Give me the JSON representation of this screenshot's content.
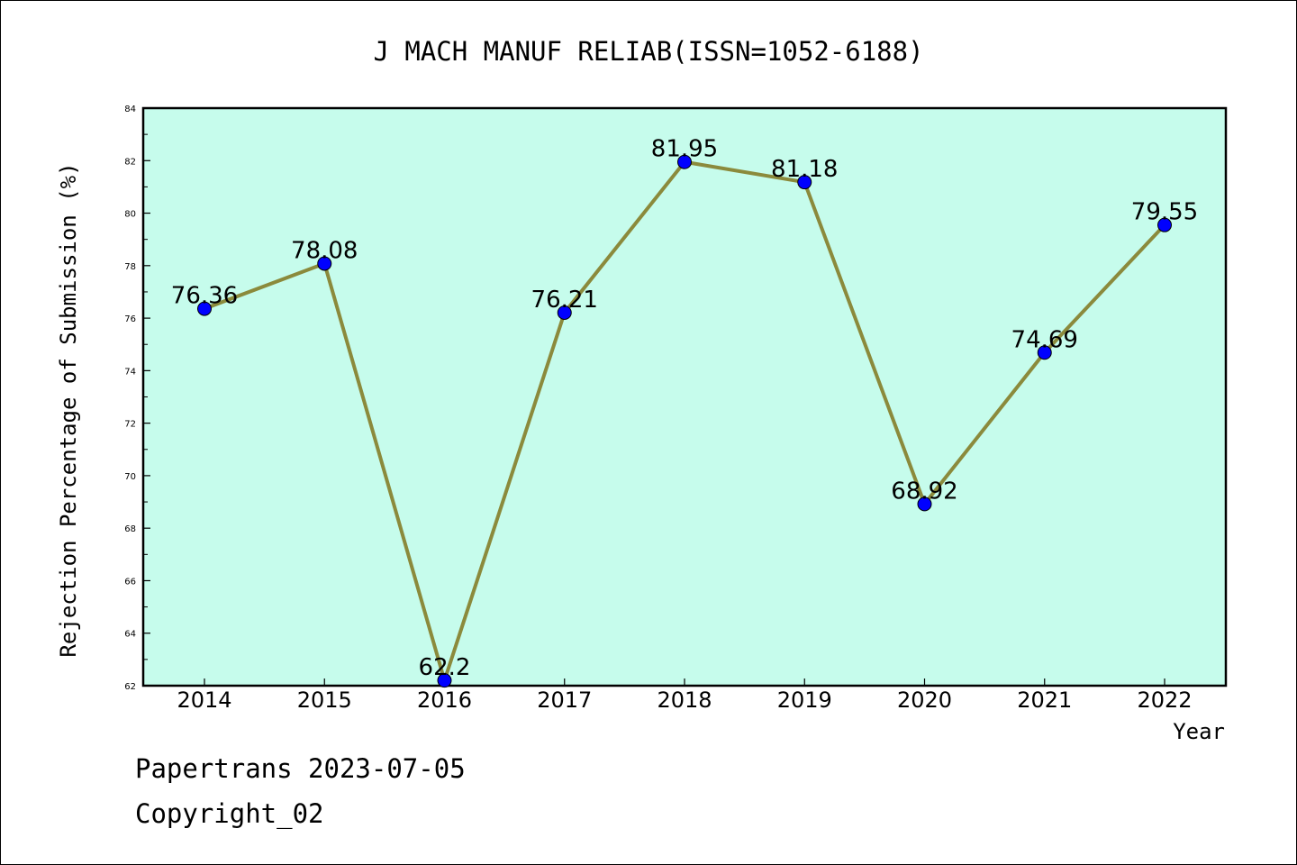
{
  "chart_data": {
    "type": "line",
    "title": "J MACH MANUF RELIAB(ISSN=1052-6188)",
    "xlabel": "Year",
    "ylabel": "Rejection Percentage of Submission (%)",
    "categories": [
      "2014",
      "2015",
      "2016",
      "2017",
      "2018",
      "2019",
      "2020",
      "2021",
      "2022"
    ],
    "values": [
      76.36,
      78.08,
      62.2,
      76.21,
      81.95,
      81.18,
      68.92,
      74.69,
      79.55
    ],
    "data_labels": [
      "76.36",
      "78.08",
      "62.2",
      "76.21",
      "81.95",
      "81.18",
      "68.92",
      "74.69",
      "79.55"
    ],
    "ylim": [
      62,
      84
    ],
    "yticks": [
      "62",
      "64",
      "66",
      "68",
      "70",
      "72",
      "74",
      "76",
      "78",
      "80",
      "82",
      "84"
    ],
    "grid": false,
    "colors": {
      "plot_background": "#c6fcec",
      "line": "#8b8a3c",
      "marker": "#0000ff"
    }
  },
  "footer": {
    "line1": "Papertrans 2023-07-05",
    "line2": "Copyright_02"
  }
}
